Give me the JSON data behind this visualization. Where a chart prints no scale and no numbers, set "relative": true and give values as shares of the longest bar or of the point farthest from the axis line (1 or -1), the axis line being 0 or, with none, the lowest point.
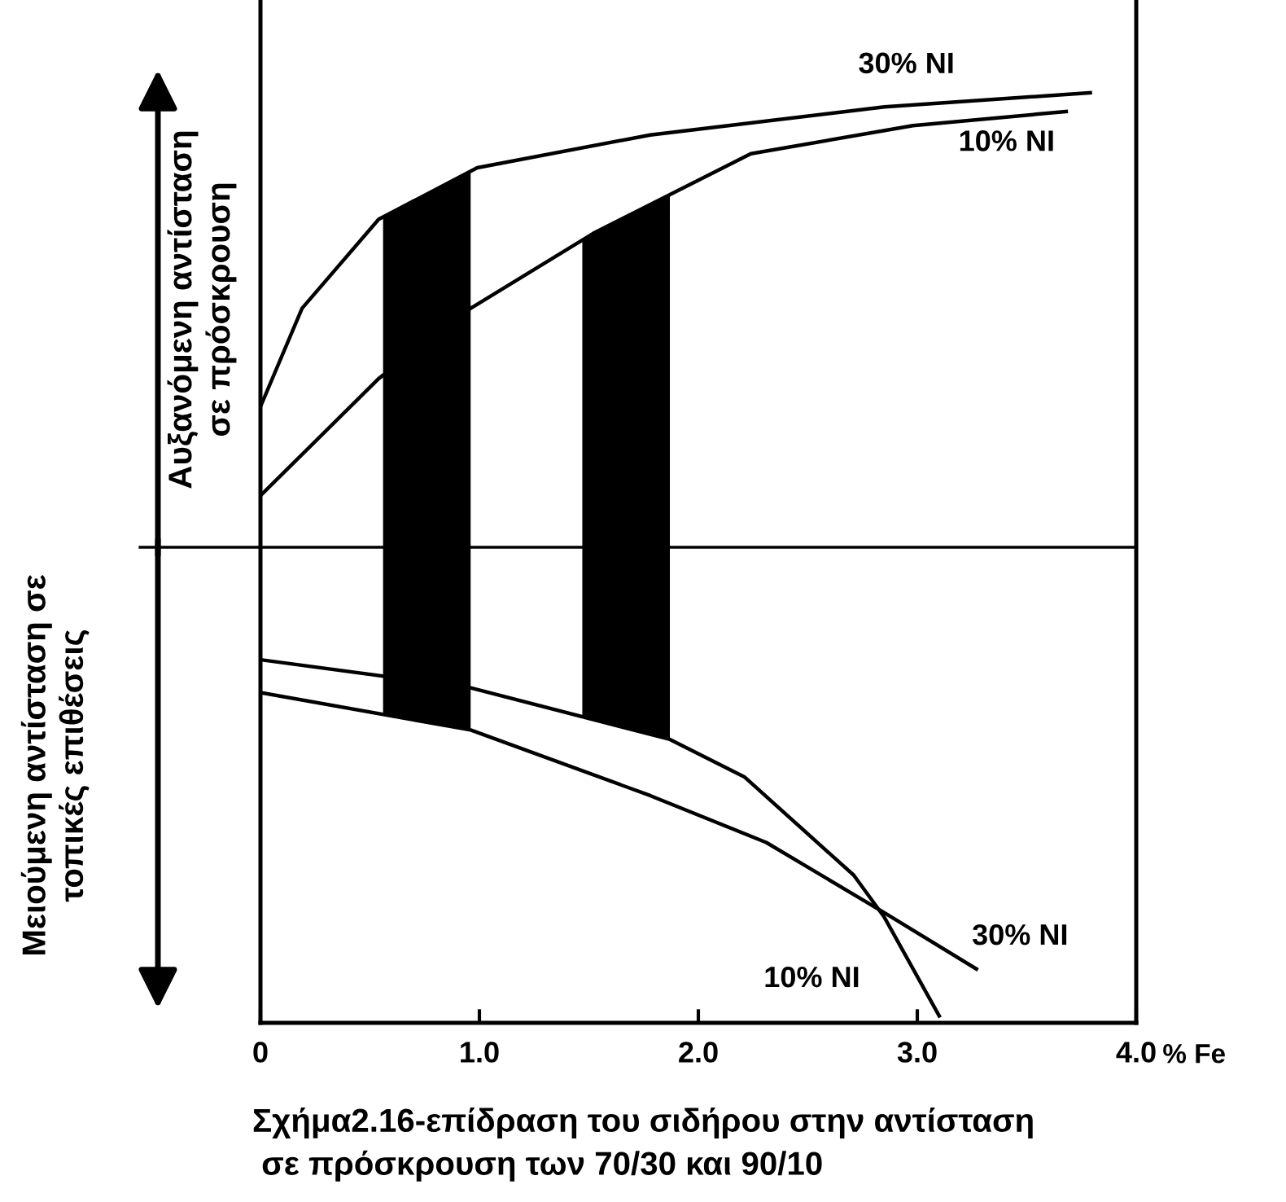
{
  "chart_data": {
    "type": "line",
    "relative": true,
    "title": "Σχήμα2.16-επίδραση του σιδήρου στην αντίσταση\n σε πρόσκρουση των 70/30 και 90/10",
    "xlabel": "% Fe",
    "annotations": [
      "Αυξανόμενη αντίσταση\nσε πρόσκρουση",
      "Μειούμενη αντίσταση σε\nτοπικές επιθέσεις"
    ],
    "xlim": [
      0,
      4.0
    ],
    "xticks": [
      0,
      {
        "value": 1,
        "label": "1.0"
      },
      {
        "value": 2,
        "label": "2.0"
      },
      {
        "value": 3,
        "label": "3.0"
      },
      {
        "value": 4,
        "label": "4.0"
      }
    ],
    "grid": false,
    "legend": false,
    "marker": "none",
    "line_style": "solid",
    "series": [
      {
        "name": "30% NI",
        "color": "#000000",
        "x": [
          0,
          0.19,
          0.54,
          0.99,
          1.78,
          2.85,
          3.79
        ],
        "values": [
          0.3,
          0.51,
          0.7,
          0.81,
          0.88,
          0.94,
          0.97
        ]
      },
      {
        "name": "30% NI",
        "color": "#000000",
        "x": [
          0,
          0.96,
          1.78,
          2.31,
          2.85,
          3.27
        ],
        "values": [
          -0.31,
          -0.39,
          -0.53,
          -0.63,
          -0.78,
          -0.9
        ]
      },
      {
        "name": "10% NI",
        "color": "#000000",
        "x": [
          0,
          0.54,
          0.96,
          1.52,
          2.24,
          2.98,
          3.68
        ],
        "values": [
          0.11,
          0.36,
          0.51,
          0.67,
          0.84,
          0.9,
          0.93
        ]
      },
      {
        "name": "10% NI",
        "color": "#000000",
        "x": [
          0,
          0.96,
          1.87,
          2.21,
          2.71,
          2.85,
          3.1
        ],
        "values": [
          -0.24,
          -0.3,
          -0.41,
          -0.49,
          -0.7,
          -0.79,
          -1.0
        ]
      }
    ],
    "bands": [
      {
        "axis": "x",
        "from": 0.56,
        "to": 0.96,
        "color": "#000000"
      },
      {
        "axis": "x",
        "from": 1.47,
        "to": 1.87,
        "color": "#000000"
      }
    ]
  }
}
